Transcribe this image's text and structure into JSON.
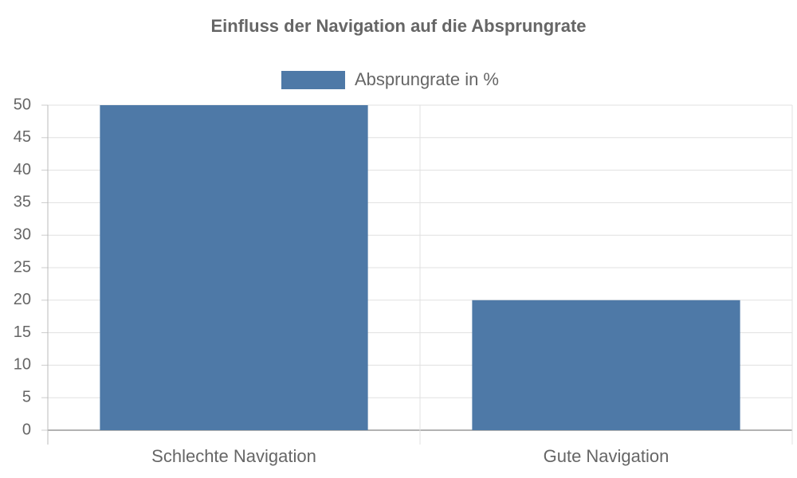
{
  "chart_data": {
    "type": "bar",
    "title": "Einfluss der Navigation auf die Absprungrate",
    "categories": [
      "Schlechte Navigation",
      "Gute Navigation"
    ],
    "series": [
      {
        "name": "Absprungrate in %",
        "color": "#4e79a7",
        "values": [
          50,
          20
        ]
      }
    ],
    "ylim": [
      0,
      50
    ],
    "yticks": [
      0,
      5,
      10,
      15,
      20,
      25,
      30,
      35,
      40,
      45,
      50
    ],
    "grid": true,
    "legend": "top"
  }
}
